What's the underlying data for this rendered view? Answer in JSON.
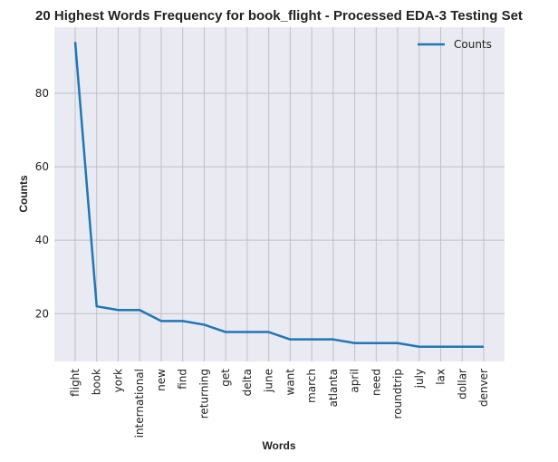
{
  "chart_data": {
    "type": "line",
    "title": "20 Highest Words Frequency for book_flight - Processed EDA-3 Testing Set",
    "xlabel": "Words",
    "ylabel": "Counts",
    "categories": [
      "flight",
      "book",
      "york",
      "international",
      "new",
      "find",
      "returning",
      "get",
      "delta",
      "june",
      "want",
      "march",
      "atlanta",
      "april",
      "need",
      "roundtrip",
      "july",
      "lax",
      "dollar",
      "denver"
    ],
    "series": [
      {
        "name": "Counts",
        "values": [
          94,
          22,
          21,
          21,
          18,
          18,
          17,
          15,
          15,
          15,
          13,
          13,
          13,
          12,
          12,
          12,
          11,
          11,
          11,
          11
        ],
        "color": "#1f77b4"
      }
    ],
    "ylim": [
      7.0,
      98.0
    ],
    "yticks": [
      20,
      40,
      60,
      80
    ],
    "grid": true,
    "legend": "top-right",
    "background": "#eaeaf2"
  }
}
